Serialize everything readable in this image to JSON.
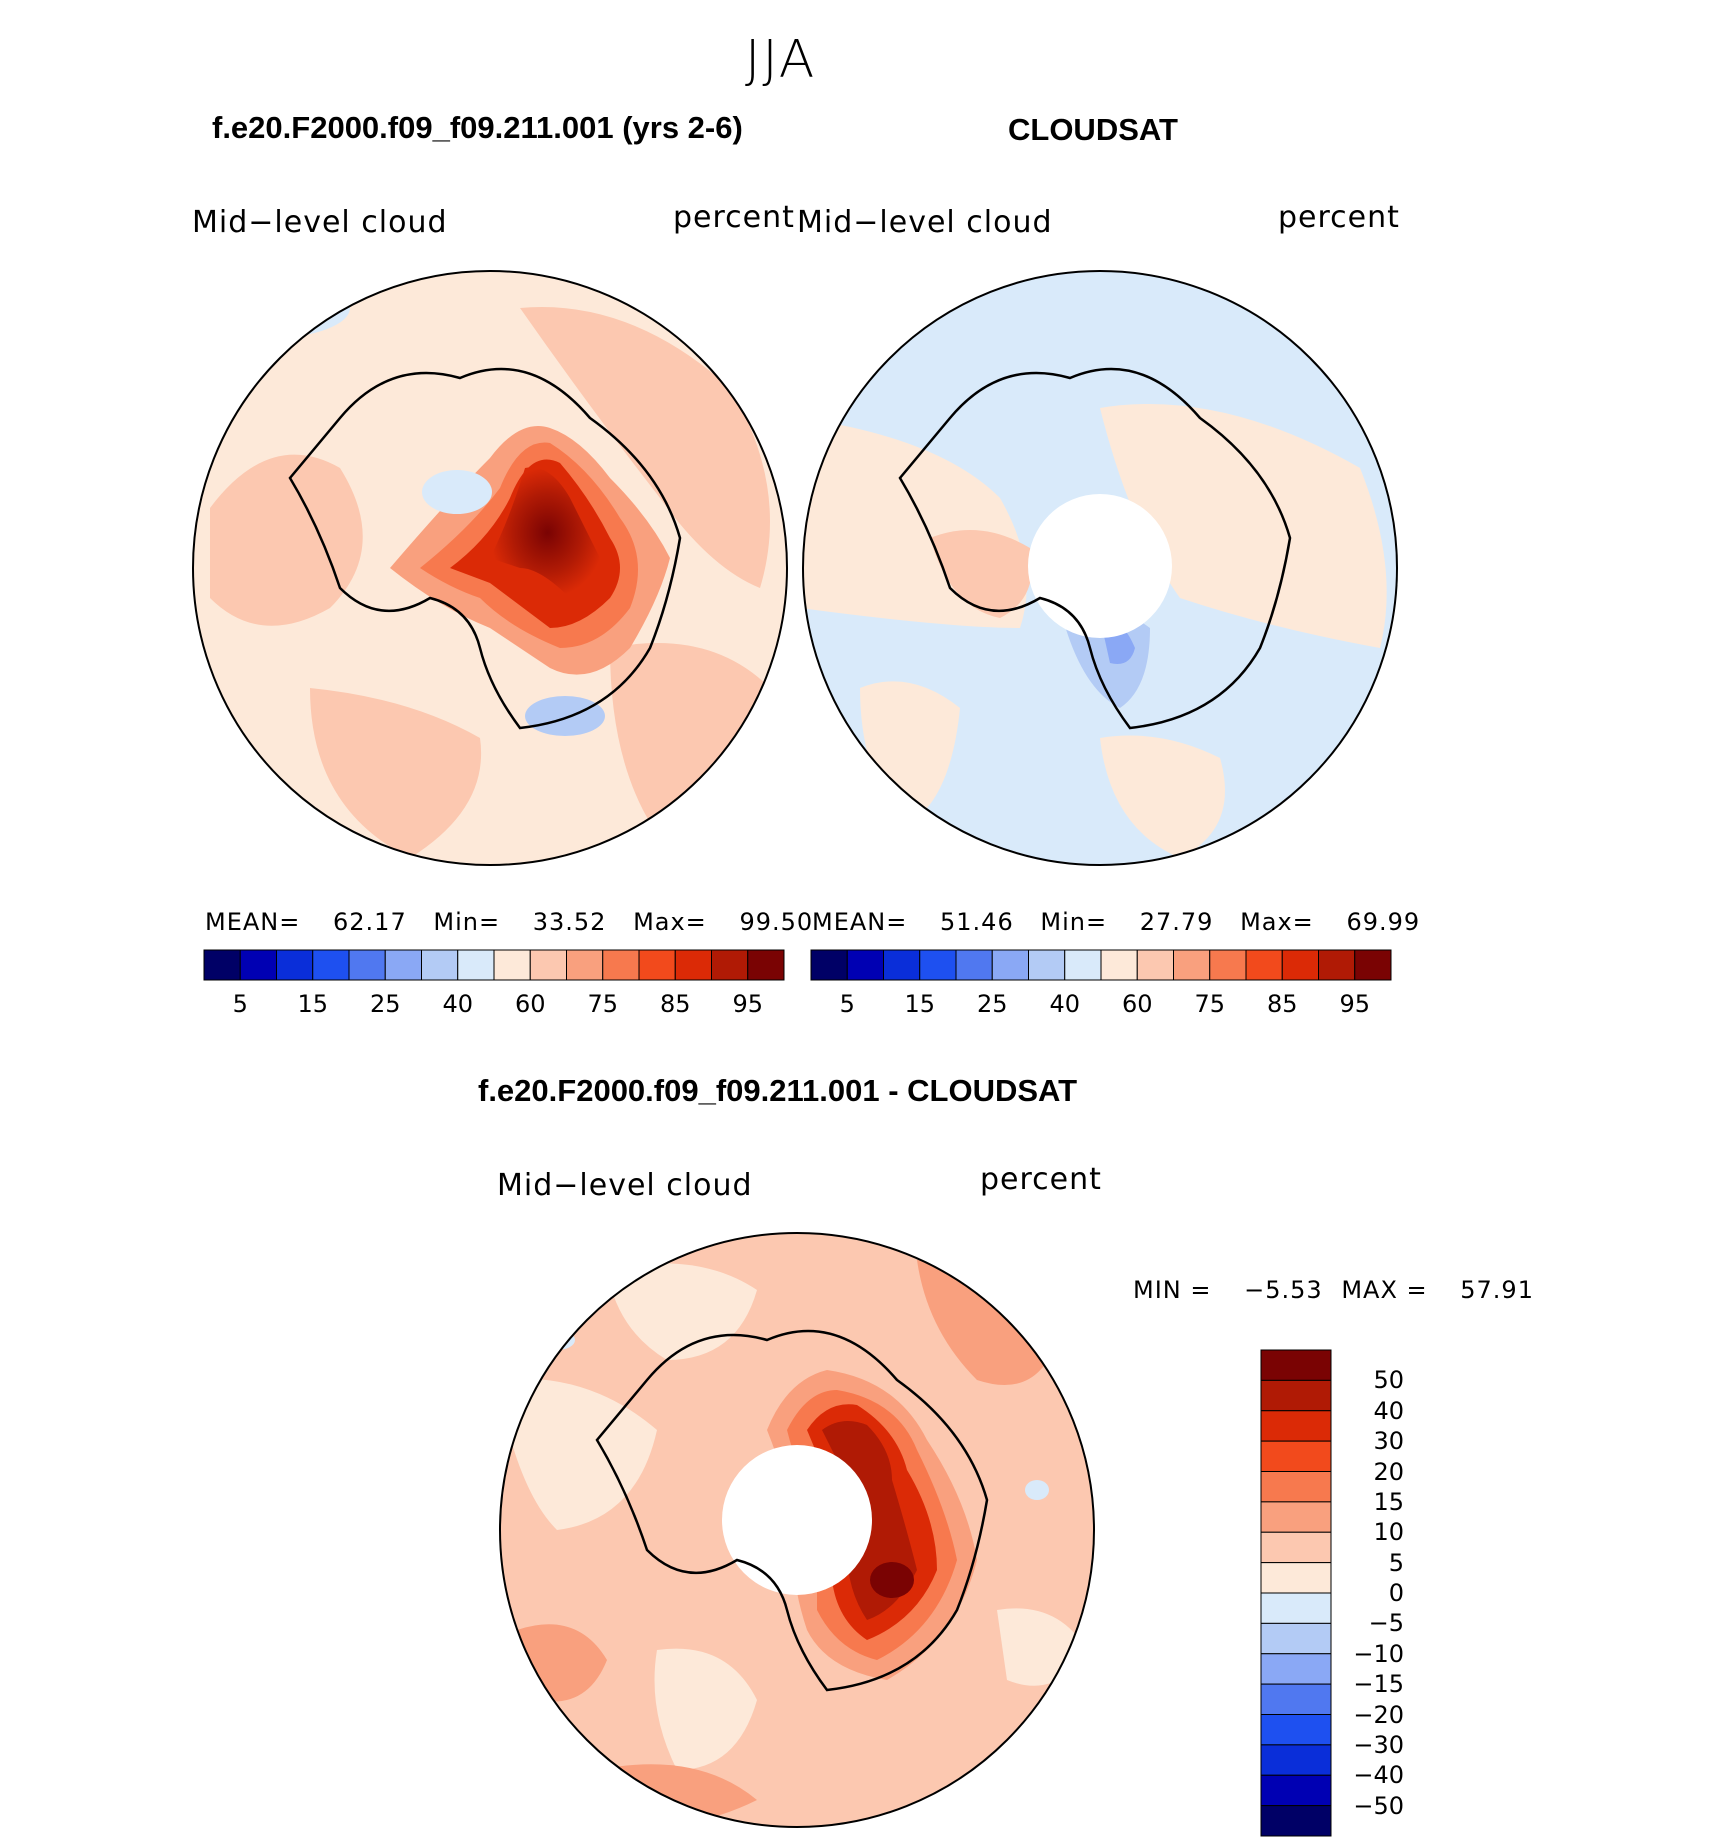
{
  "season": "JJA",
  "panels": [
    {
      "title": "f.e20.F2000.f09_f09.211.001 (yrs 2-6)",
      "left_label": "Mid−level cloud",
      "right_label": "percent",
      "stats": {
        "mean_label": "MEAN=",
        "mean": "62.17",
        "min_label": "Min=",
        "min": "33.52",
        "max_label": "Max=",
        "max": "99.50"
      }
    },
    {
      "title": "CLOUDSAT",
      "left_label": "Mid−level cloud",
      "right_label": "percent",
      "stats": {
        "mean_label": "MEAN=",
        "mean": "51.46",
        "min_label": "Min=",
        "min": "27.79",
        "max_label": "Max=",
        "max": "69.99"
      }
    }
  ],
  "abs_colorbar": {
    "colors": [
      "#000066",
      "#0000b3",
      "#0a2ed9",
      "#1e50f0",
      "#5078f0",
      "#8aa8f5",
      "#b3cbf5",
      "#d9eafa",
      "#fde9d9",
      "#fcc8b0",
      "#f9a07e",
      "#f7794e",
      "#f24a1c",
      "#db2a06",
      "#b01a05",
      "#7a0303"
    ],
    "tick_labels": [
      "5",
      "15",
      "25",
      "40",
      "60",
      "75",
      "85",
      "95"
    ]
  },
  "diff_panel": {
    "title": "f.e20.F2000.f09_f09.211.001 - CLOUDSAT",
    "left_label": "Mid−level cloud",
    "right_label": "percent",
    "minmax": {
      "min_label": "MIN =",
      "min": "−5.53",
      "max_label": "MAX =",
      "max": "57.91"
    }
  },
  "diff_colorbar": {
    "colors_top_to_bottom": [
      "#7a0303",
      "#b01a05",
      "#db2a06",
      "#f24a1c",
      "#f7794e",
      "#f9a07e",
      "#fcc8b0",
      "#fde9d9",
      "#d9eafa",
      "#b3cbf5",
      "#8aa8f5",
      "#5078f0",
      "#1e50f0",
      "#0a2ed9",
      "#0000b3",
      "#000066"
    ],
    "tick_labels": [
      "50",
      "40",
      "30",
      "20",
      "15",
      "10",
      "5",
      "0",
      "−5",
      "−10",
      "−15",
      "−20",
      "−30",
      "−40",
      "−50"
    ]
  }
}
